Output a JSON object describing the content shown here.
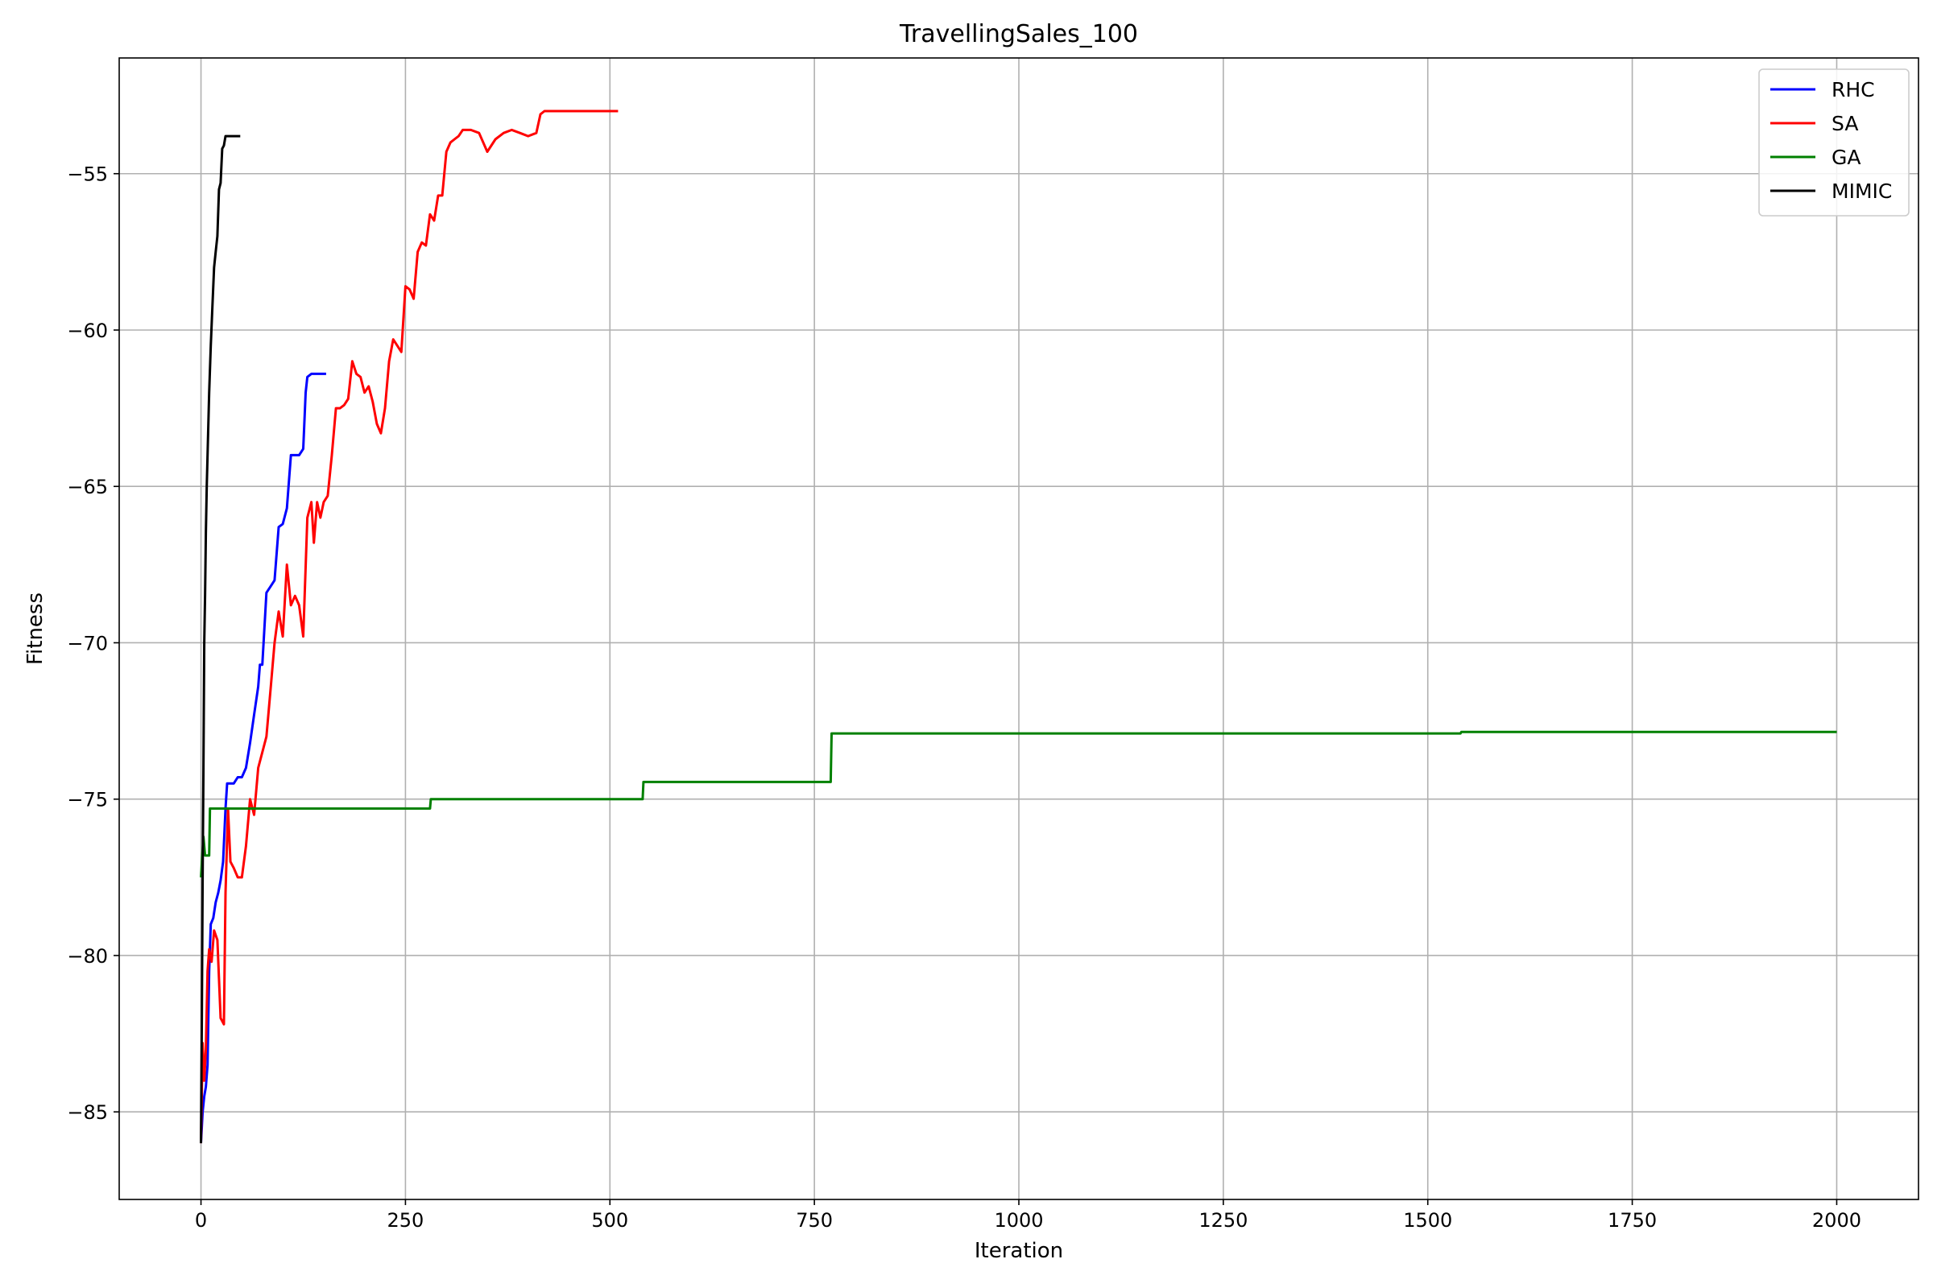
{
  "chart_data": {
    "type": "line",
    "title": "TravellingSales_100",
    "xlabel": "Iteration",
    "ylabel": "Fitness",
    "xlim": [
      -100,
      2100
    ],
    "ylim": [
      -87.8,
      -51.3
    ],
    "xticks": [
      0,
      250,
      500,
      750,
      1000,
      1250,
      1500,
      1750,
      2000
    ],
    "yticks": [
      -85,
      -80,
      -75,
      -70,
      -65,
      -60,
      -55
    ],
    "ytick_labels": [
      "−85",
      "−80",
      "−75",
      "−70",
      "−65",
      "−60",
      "−55"
    ],
    "grid": true,
    "legend_position": "top-right",
    "series": [
      {
        "name": "RHC",
        "color": "#0000ff",
        "x": [
          0,
          2,
          4,
          6,
          8,
          10,
          12,
          15,
          18,
          21,
          24,
          27,
          30,
          32,
          35,
          40,
          45,
          50,
          55,
          60,
          65,
          70,
          72,
          75,
          80,
          85,
          90,
          95,
          100,
          105,
          110,
          115,
          120,
          125,
          128,
          130,
          135,
          140,
          145,
          150,
          153
        ],
        "y": [
          -86,
          -85,
          -84.5,
          -84.2,
          -83.5,
          -80.5,
          -79,
          -78.8,
          -78.3,
          -78,
          -77.6,
          -77,
          -75.3,
          -74.5,
          -74.5,
          -74.5,
          -74.3,
          -74.3,
          -74,
          -73.2,
          -72.3,
          -71.4,
          -70.7,
          -70.7,
          -68.4,
          -68.2,
          -68,
          -66.3,
          -66.2,
          -65.7,
          -64,
          -64,
          -64,
          -63.8,
          -62,
          -61.5,
          -61.4,
          -61.4,
          -61.4,
          -61.4,
          -61.4
        ]
      },
      {
        "name": "SA",
        "color": "#ff0000",
        "x": [
          0,
          2,
          4,
          6,
          8,
          10,
          13,
          16,
          20,
          24,
          28,
          30,
          33,
          36,
          40,
          45,
          50,
          55,
          60,
          65,
          70,
          75,
          80,
          85,
          90,
          95,
          100,
          105,
          110,
          115,
          120,
          125,
          130,
          135,
          138,
          142,
          146,
          150,
          155,
          160,
          165,
          170,
          175,
          180,
          185,
          190,
          195,
          200,
          205,
          210,
          215,
          220,
          225,
          230,
          235,
          240,
          245,
          250,
          255,
          260,
          265,
          270,
          275,
          280,
          285,
          290,
          295,
          300,
          305,
          310,
          315,
          320,
          330,
          340,
          350,
          360,
          370,
          380,
          390,
          400,
          410,
          415,
          420,
          430,
          440,
          450,
          460,
          470,
          480,
          485,
          490,
          500,
          510
        ],
        "y": [
          -86,
          -82.8,
          -84,
          -83,
          -80.5,
          -79.8,
          -80.2,
          -79.2,
          -79.5,
          -82,
          -82.2,
          -78,
          -75.3,
          -77,
          -77.2,
          -77.5,
          -77.5,
          -76.5,
          -75,
          -75.5,
          -74,
          -73.5,
          -73,
          -71.5,
          -70,
          -69,
          -69.8,
          -67.5,
          -68.8,
          -68.5,
          -68.8,
          -69.8,
          -66,
          -65.5,
          -66.8,
          -65.5,
          -66,
          -65.5,
          -65.3,
          -64,
          -62.5,
          -62.5,
          -62.4,
          -62.2,
          -61,
          -61.4,
          -61.5,
          -62,
          -61.8,
          -62.3,
          -63,
          -63.3,
          -62.5,
          -61,
          -60.3,
          -60.5,
          -60.7,
          -58.6,
          -58.7,
          -59,
          -57.5,
          -57.2,
          -57.3,
          -56.3,
          -56.5,
          -55.7,
          -55.7,
          -54.3,
          -54,
          -53.9,
          -53.8,
          -53.6,
          -53.6,
          -53.7,
          -54.3,
          -53.9,
          -53.7,
          -53.6,
          -53.7,
          -53.8,
          -53.7,
          -53.1,
          -53,
          -53,
          -53,
          -53,
          -53,
          -53,
          -53,
          -53,
          -53,
          -53,
          -53
        ],
        "x_note": ""
      },
      {
        "name": "GA",
        "color": "#008000",
        "x": [
          0,
          3,
          5,
          10,
          11,
          280,
          281,
          540,
          541,
          770,
          771,
          1540,
          1541,
          2000
        ],
        "y": [
          -77.5,
          -76.2,
          -76.8,
          -76.8,
          -75.3,
          -75.3,
          -75,
          -75,
          -74.45,
          -74.45,
          -72.9,
          -72.9,
          -72.85,
          -72.85
        ]
      },
      {
        "name": "MIMIC",
        "color": "#000000",
        "x": [
          0,
          1,
          2,
          3,
          4,
          5,
          6,
          7,
          8,
          10,
          12,
          14,
          16,
          18,
          20,
          22,
          24,
          26,
          28,
          30,
          32,
          35,
          40,
          45,
          48
        ],
        "y": [
          -86,
          -82,
          -77.5,
          -74,
          -70,
          -68.5,
          -66.5,
          -65,
          -64,
          -62,
          -60.5,
          -59.2,
          -58,
          -57.5,
          -57,
          -55.5,
          -55.3,
          -54.2,
          -54.1,
          -53.8,
          -53.8,
          -53.8,
          -53.8,
          -53.8,
          -53.8
        ]
      }
    ]
  }
}
